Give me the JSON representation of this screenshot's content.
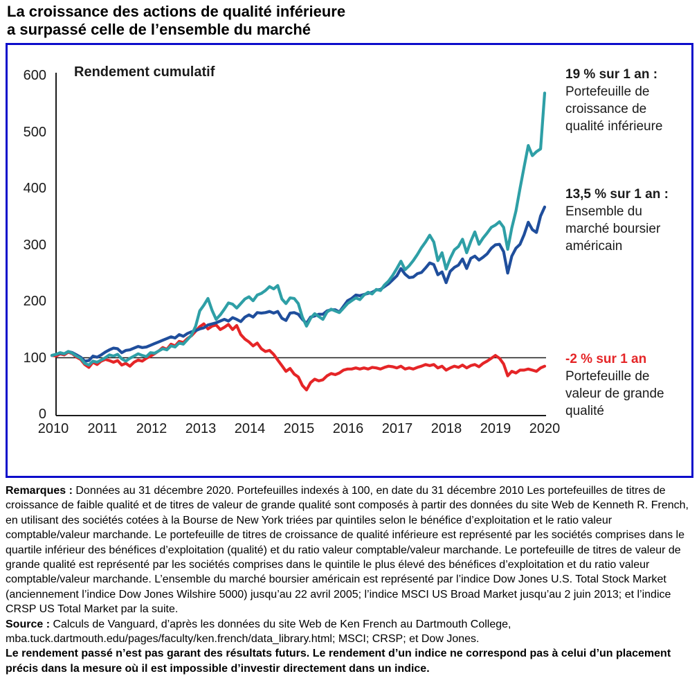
{
  "title_line1": "La croissance des actions de qualité inférieure",
  "title_line2": "a surpassé celle de l’ensemble du marché",
  "colors": {
    "frame_border": "#0C0CCB",
    "axis": "#1a1a1a",
    "low_quality_growth": "#2E9FA6",
    "us_market": "#1F4E9C",
    "high_quality_value": "#E52527"
  },
  "annotations": [
    {
      "headline": "19 % sur 1 an :",
      "l1": "Portefeuille de",
      "l2": "croissance de",
      "l3": "qualité inférieure"
    },
    {
      "headline": "13,5 % sur 1 an :",
      "l1": "Ensemble du",
      "l2": "marché boursier",
      "l3": "américain"
    },
    {
      "headline": "-2 % sur 1 an",
      "l1": "Portefeuille de",
      "l2": "valeur de grande",
      "l3": "qualité"
    }
  ],
  "chart_data": {
    "type": "line",
    "title": "Rendement cumulatif",
    "xlabel": "",
    "ylabel": "Rendement cumulatif",
    "ylim": [
      0,
      600
    ],
    "y_ticks": [
      600,
      500,
      400,
      300,
      200,
      100,
      0
    ],
    "x_ticks": [
      "2010",
      "2011",
      "2012",
      "2013",
      "2014",
      "2015",
      "2016",
      "2017",
      "2018",
      "2019",
      "2020"
    ],
    "x_unit": "mensuel, de décembre 2010 à décembre 2020 (indexé à 100 au 31 décembre 2010)",
    "baseline_value": 100,
    "grid": false,
    "legend_position": "right-annotations",
    "series": [
      {
        "name": "Portefeuille de croissance de qualité inférieure",
        "one_year_label": "19 % sur 1 an :",
        "color": "#2E9FA6",
        "values": [
          104,
          106,
          109,
          107,
          111,
          108,
          103,
          99,
          90,
          87,
          94,
          92,
          96,
          100,
          105,
          103,
          106,
          98,
          94,
          99,
          103,
          107,
          104,
          102,
          109,
          108,
          112,
          116,
          114,
          121,
          119,
          126,
          124,
          132,
          140,
          156,
          183,
          193,
          205,
          184,
          168,
          176,
          186,
          197,
          195,
          188,
          196,
          204,
          208,
          201,
          211,
          214,
          219,
          226,
          222,
          228,
          204,
          196,
          206,
          205,
          196,
          172,
          156,
          170,
          178,
          173,
          168,
          181,
          186,
          183,
          180,
          188,
          196,
          201,
          206,
          203,
          211,
          216,
          213,
          221,
          219,
          229,
          236,
          246,
          258,
          271,
          256,
          263,
          272,
          283,
          295,
          305,
          317,
          305,
          272,
          286,
          257,
          276,
          291,
          297,
          310,
          286,
          306,
          323,
          301,
          312,
          321,
          331,
          335,
          341,
          331,
          292,
          330,
          360,
          400,
          438,
          476,
          458,
          465,
          470,
          569
        ]
      },
      {
        "name": "Ensemble du marché boursier américain",
        "one_year_label": "13,5 % sur 1 an :",
        "color": "#1F4E9C",
        "values": [
          104,
          106,
          108,
          107,
          111,
          109,
          105,
          101,
          94,
          95,
          103,
          101,
          105,
          110,
          114,
          117,
          116,
          109,
          113,
          114,
          117,
          120,
          118,
          119,
          122,
          125,
          128,
          131,
          134,
          137,
          135,
          141,
          138,
          143,
          146,
          148,
          151,
          153,
          158,
          160,
          162,
          165,
          168,
          165,
          171,
          168,
          164,
          172,
          176,
          172,
          180,
          179,
          180,
          182,
          179,
          182,
          170,
          166,
          179,
          180,
          177,
          168,
          161,
          172,
          174,
          177,
          177,
          183,
          185,
          185,
          181,
          191,
          201,
          205,
          211,
          210,
          212,
          214,
          216,
          220,
          221,
          226,
          231,
          238,
          245,
          258,
          248,
          242,
          243,
          249,
          251,
          259,
          268,
          265,
          247,
          252,
          233,
          253,
          260,
          264,
          275,
          258,
          276,
          280,
          273,
          278,
          284,
          294,
          300,
          301,
          288,
          250,
          280,
          294,
          301,
          318,
          340,
          327,
          322,
          351,
          367
        ]
      },
      {
        "name": "Portefeuille de valeur de grande qualité",
        "one_year_label": "-2 % sur 1 an",
        "color": "#E52527",
        "values": [
          104,
          103,
          107,
          105,
          110,
          107,
          101,
          97,
          88,
          83,
          92,
          88,
          94,
          97,
          95,
          92,
          95,
          87,
          90,
          85,
          92,
          96,
          94,
          99,
          103,
          107,
          112,
          118,
          115,
          124,
          121,
          129,
          127,
          134,
          139,
          147,
          155,
          160,
          151,
          156,
          158,
          150,
          154,
          159,
          150,
          157,
          141,
          133,
          128,
          121,
          126,
          116,
          111,
          113,
          106,
          96,
          86,
          76,
          81,
          71,
          66,
          51,
          43,
          56,
          62,
          59,
          61,
          68,
          72,
          70,
          73,
          78,
          80,
          80,
          82,
          80,
          82,
          80,
          83,
          82,
          80,
          83,
          85,
          84,
          82,
          85,
          80,
          82,
          80,
          83,
          85,
          88,
          86,
          88,
          82,
          85,
          78,
          82,
          85,
          83,
          87,
          82,
          86,
          88,
          84,
          90,
          94,
          99,
          104,
          99,
          89,
          68,
          76,
          73,
          78,
          78,
          80,
          78,
          76,
          82,
          85
        ]
      }
    ]
  },
  "notes": {
    "remarks_label": "Remarques :",
    "remarks_text": " Données au 31 décembre 2020. Portefeuilles indexés à 100, en date du 31 décembre 2010 Les portefeuilles de titres de croissance de faible qualité et de titres de valeur de grande qualité sont composés à partir des données du site Web de Kenneth R. French, en utilisant des sociétés cotées à la Bourse de New York triées par quintiles selon le bénéfice d’exploitation et le ratio valeur comptable/valeur marchande. Le portefeuille de titres de croissance de qualité inférieure est représenté par les sociétés comprises dans le quartile inférieur des bénéfices d’exploitation (qualité) et du ratio valeur comptable/valeur marchande. Le portefeuille de titres de valeur de grande qualité est représenté par les sociétés comprises dans le quintile le plus élevé des bénéfices d’exploitation et du ratio valeur comptable/valeur marchande. L’ensemble du marché boursier américain est représenté par l’indice Dow Jones U.S. Total Stock Market (anciennement l’indice Dow Jones Wilshire 5000) jusqu’au 22 avril 2005; l’indice MSCI US Broad Market jusqu’au 2 juin 2013; et l’indice CRSP US Total Market par la suite.",
    "source_label": "Source :",
    "source_text": " Calculs de Vanguard, d’après les données du site Web de Ken French au Dartmouth College, mba.tuck.dartmouth.edu/pages/faculty/ken.french/data_library.html; MSCI; CRSP; et Dow Jones.",
    "disclaimer": "Le rendement passé n’est pas garant des résultats futurs. Le rendement d’un indice ne correspond pas à celui d’un placement précis dans la mesure où il est impossible d’investir directement dans un indice."
  }
}
